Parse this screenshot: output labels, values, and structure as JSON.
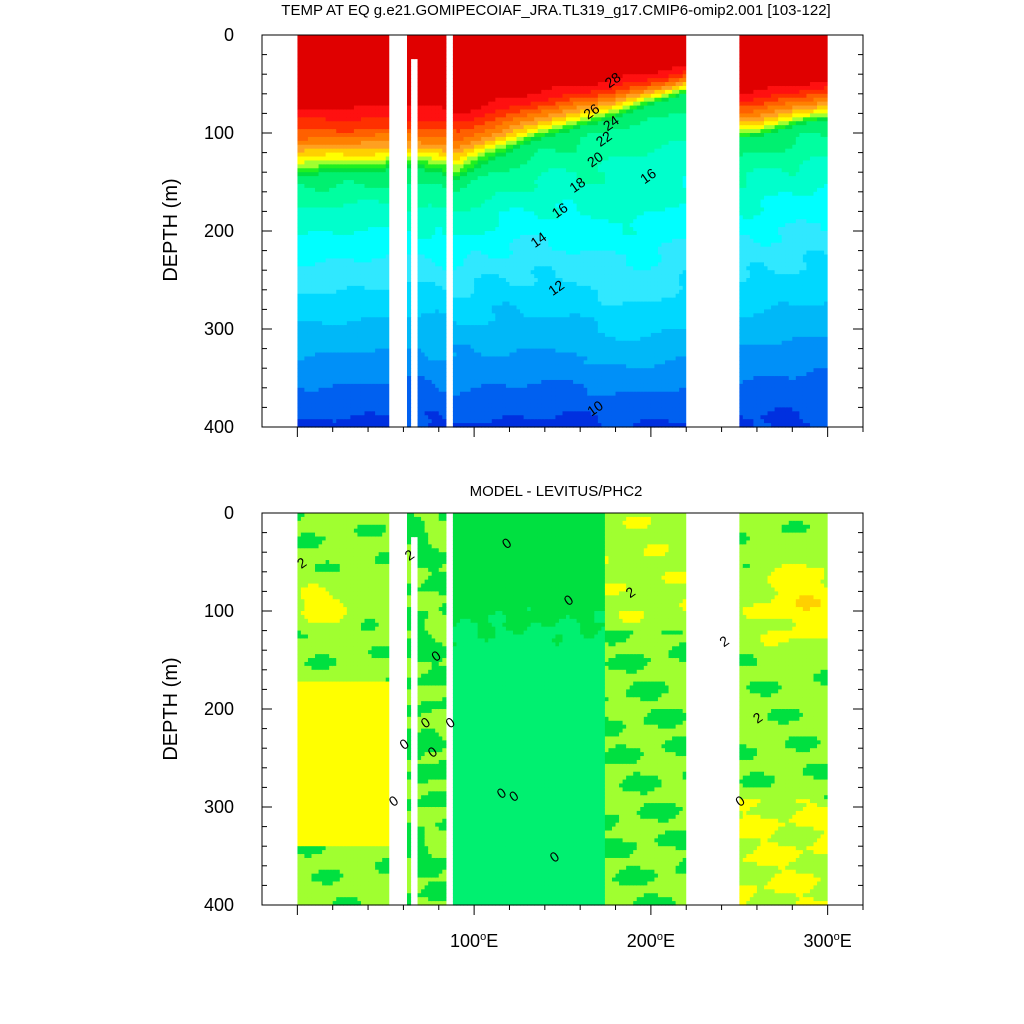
{
  "chart_data": [
    {
      "type": "heatmap",
      "title": "TEMP AT EQ g.e21.GOMIPECOIAF_JRA.TL319_g17.CMIP6-omip2.001 [103-122]",
      "ylabel": "DEPTH (m)",
      "x_units": "longitude (°E)",
      "xlim": [
        -20,
        320
      ],
      "ylim": [
        0,
        400
      ],
      "y_reversed": true,
      "yticks": [
        0,
        100,
        200,
        300,
        400
      ],
      "contour_levels": [
        8,
        9,
        10,
        11,
        12,
        13,
        14,
        15,
        16,
        17,
        18,
        19,
        20,
        21,
        22,
        23,
        24,
        25,
        26,
        27,
        28
      ],
      "colors": [
        "#0030e0",
        "#0060f0",
        "#0090f8",
        "#00b8f8",
        "#00d8ff",
        "#30e8ff",
        "#00ffff",
        "#00ffcc",
        "#00ffa0",
        "#00f070",
        "#00e040",
        "#20f020",
        "#a0ff30",
        "#ffff00",
        "#ffd000",
        "#ffa020",
        "#ff8000",
        "#ff6000",
        "#ff3000",
        "#ff1010",
        "#e00000"
      ],
      "contour_labels": [
        {
          "x": 180,
          "depth": 50,
          "text": "28"
        },
        {
          "x": 168,
          "depth": 82,
          "text": "26"
        },
        {
          "x": 179,
          "depth": 94,
          "text": "24"
        },
        {
          "x": 175,
          "depth": 110,
          "text": "22"
        },
        {
          "x": 170,
          "depth": 131,
          "text": "20"
        },
        {
          "x": 160,
          "depth": 157,
          "text": "18"
        },
        {
          "x": 150,
          "depth": 183,
          "text": "16"
        },
        {
          "x": 138,
          "depth": 213,
          "text": "14"
        },
        {
          "x": 148,
          "depth": 262,
          "text": "12"
        },
        {
          "x": 200,
          "depth": 148,
          "text": "16"
        },
        {
          "x": 170,
          "depth": 385,
          "text": "10"
        }
      ]
    },
    {
      "type": "heatmap",
      "title": "MODEL - LEVITUS/PHC2",
      "ylabel": "DEPTH (m)",
      "x_units": "longitude (°E)",
      "xlim": [
        -20,
        320
      ],
      "ylim": [
        0,
        400
      ],
      "y_reversed": true,
      "yticks": [
        0,
        100,
        200,
        300,
        400
      ],
      "xticks": [
        {
          "value": 100,
          "label": "100",
          "unit": "o",
          "suffix": "E"
        },
        {
          "value": 200,
          "label": "200",
          "unit": "o",
          "suffix": "E"
        },
        {
          "value": 300,
          "label": "300",
          "unit": "o",
          "suffix": "E"
        }
      ],
      "contour_levels": [
        -1,
        0,
        1,
        2,
        3,
        4
      ],
      "colors": [
        "#00ffcc",
        "#00f070",
        "#00e040",
        "#a0ff30",
        "#ffff00",
        "#ffd000"
      ],
      "contour_labels": [
        {
          "x": 4,
          "depth": 55,
          "text": "2"
        },
        {
          "x": 65,
          "depth": 47,
          "text": "2"
        },
        {
          "x": 120,
          "depth": 35,
          "text": "0"
        },
        {
          "x": 155,
          "depth": 93,
          "text": "0"
        },
        {
          "x": 190,
          "depth": 85,
          "text": "2"
        },
        {
          "x": 243,
          "depth": 135,
          "text": "2"
        },
        {
          "x": 262,
          "depth": 213,
          "text": "2"
        },
        {
          "x": 80,
          "depth": 150,
          "text": "0"
        },
        {
          "x": 74,
          "depth": 218,
          "text": "0"
        },
        {
          "x": 88,
          "depth": 218,
          "text": "0"
        },
        {
          "x": 62,
          "depth": 240,
          "text": "0"
        },
        {
          "x": 78,
          "depth": 248,
          "text": "0"
        },
        {
          "x": 117,
          "depth": 290,
          "text": "0"
        },
        {
          "x": 124,
          "depth": 293,
          "text": "0"
        },
        {
          "x": 56,
          "depth": 298,
          "text": "0"
        },
        {
          "x": 252,
          "depth": 298,
          "text": "0"
        },
        {
          "x": 147,
          "depth": 355,
          "text": "0"
        }
      ]
    }
  ]
}
